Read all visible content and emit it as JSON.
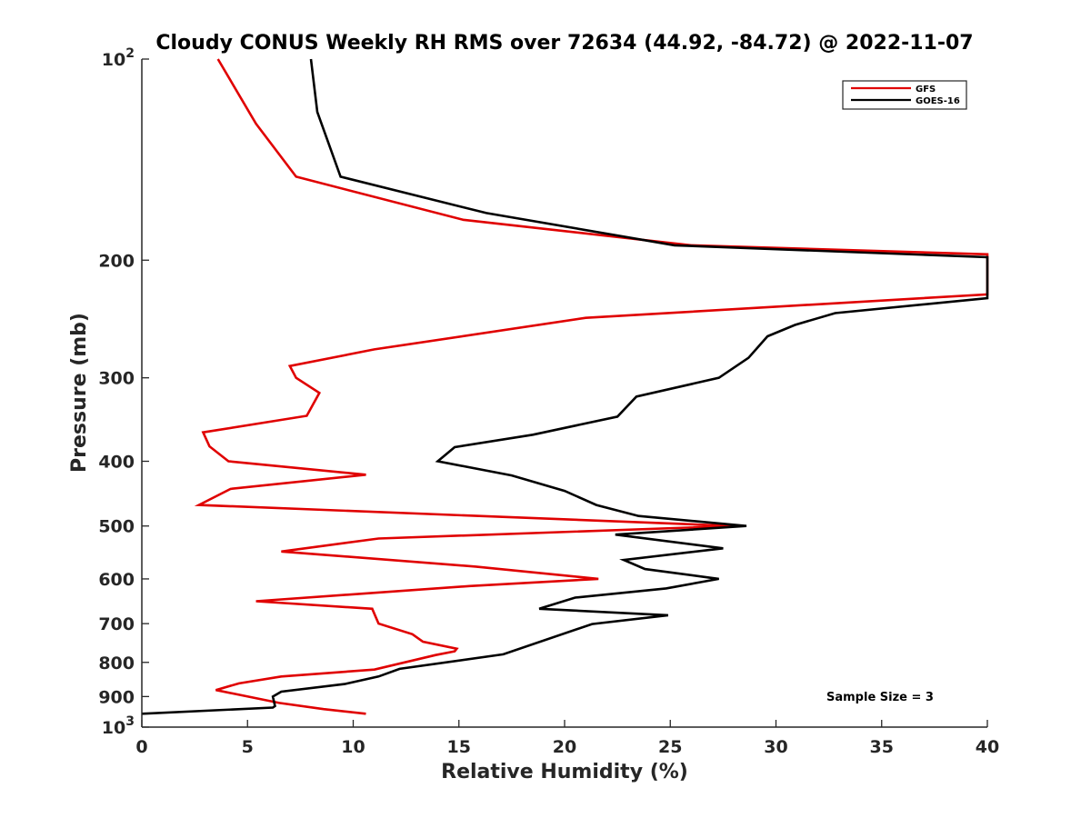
{
  "chart_data": {
    "type": "line",
    "title": "Cloudy CONUS Weekly RH RMS over 72634 (44.92, -84.72) @ 2022-11-07",
    "xlabel": "Relative Humidity (%)",
    "ylabel": "Pressure (mb)",
    "xlim": [
      0,
      40
    ],
    "ylim": [
      100,
      1000
    ],
    "y_scale": "log",
    "y_reversed": true,
    "x_ticks": [
      "0",
      "5",
      "10",
      "15",
      "20",
      "25",
      "30",
      "35",
      "40"
    ],
    "y_ticks": [
      {
        "value": 100,
        "base": "10",
        "exp": "2"
      },
      {
        "value": 200,
        "label": "200"
      },
      {
        "value": 300,
        "label": "300"
      },
      {
        "value": 400,
        "label": "400"
      },
      {
        "value": 500,
        "label": "500"
      },
      {
        "value": 600,
        "label": "600"
      },
      {
        "value": 700,
        "label": "700"
      },
      {
        "value": 800,
        "label": "800"
      },
      {
        "value": 900,
        "label": "900"
      },
      {
        "value": 1000,
        "base": "10",
        "exp": "3"
      }
    ],
    "legend_position": "top-right",
    "annotation": "Sample Size = 3",
    "series": [
      {
        "name": "GFS",
        "color": "#e00000",
        "points": [
          [
            3.6,
            100
          ],
          [
            5.4,
            125
          ],
          [
            7.3,
            150
          ],
          [
            15.2,
            174
          ],
          [
            26,
            190
          ],
          [
            40,
            196
          ],
          [
            40,
            225
          ],
          [
            21,
            244
          ],
          [
            11,
            272
          ],
          [
            7,
            288
          ],
          [
            7.3,
            300
          ],
          [
            8.4,
            316
          ],
          [
            7.8,
            342
          ],
          [
            2.9,
            362
          ],
          [
            3.2,
            380
          ],
          [
            4.1,
            400
          ],
          [
            10.6,
            419
          ],
          [
            4.2,
            440
          ],
          [
            2.7,
            465
          ],
          [
            28,
            500
          ],
          [
            11.2,
            522
          ],
          [
            6.6,
            546
          ],
          [
            15.8,
            575
          ],
          [
            21.6,
            600
          ],
          [
            15.5,
            615
          ],
          [
            5.4,
            648
          ],
          [
            10.9,
            665
          ],
          [
            11.2,
            700
          ],
          [
            12.8,
            726
          ],
          [
            13.3,
            745
          ],
          [
            14.9,
            763
          ],
          [
            14.8,
            770
          ],
          [
            13.9,
            780
          ],
          [
            11,
            820
          ],
          [
            6.6,
            840
          ],
          [
            4.6,
            860
          ],
          [
            3.5,
            880
          ],
          [
            6.5,
            920
          ],
          [
            8.6,
            940
          ],
          [
            10.6,
            955
          ]
        ]
      },
      {
        "name": "GOES-16",
        "color": "#000000",
        "points": [
          [
            8,
            100
          ],
          [
            8.3,
            120
          ],
          [
            9.4,
            150
          ],
          [
            16.3,
            170
          ],
          [
            25.2,
            190
          ],
          [
            40,
            198
          ],
          [
            40,
            228
          ],
          [
            32.8,
            240
          ],
          [
            30.9,
            250
          ],
          [
            29.6,
            260
          ],
          [
            28.7,
            280
          ],
          [
            27.3,
            300
          ],
          [
            23.4,
            320
          ],
          [
            22.5,
            343
          ],
          [
            18.5,
            365
          ],
          [
            14.8,
            381
          ],
          [
            14,
            400
          ],
          [
            17.5,
            420
          ],
          [
            20,
            443
          ],
          [
            21.5,
            465
          ],
          [
            23.5,
            483
          ],
          [
            28.6,
            500
          ],
          [
            22.4,
            515
          ],
          [
            27.5,
            540
          ],
          [
            22.8,
            562
          ],
          [
            23.8,
            580
          ],
          [
            27.3,
            600
          ],
          [
            24.8,
            620
          ],
          [
            20.5,
            640
          ],
          [
            18.8,
            665
          ],
          [
            24.9,
            680
          ],
          [
            21.3,
            701
          ],
          [
            17.1,
            778
          ],
          [
            12.2,
            818
          ],
          [
            11.2,
            840
          ],
          [
            9.6,
            862
          ],
          [
            6.6,
            885
          ],
          [
            6.2,
            900
          ],
          [
            6.3,
            930
          ],
          [
            6.2,
            935
          ],
          [
            0,
            955
          ]
        ]
      }
    ]
  }
}
